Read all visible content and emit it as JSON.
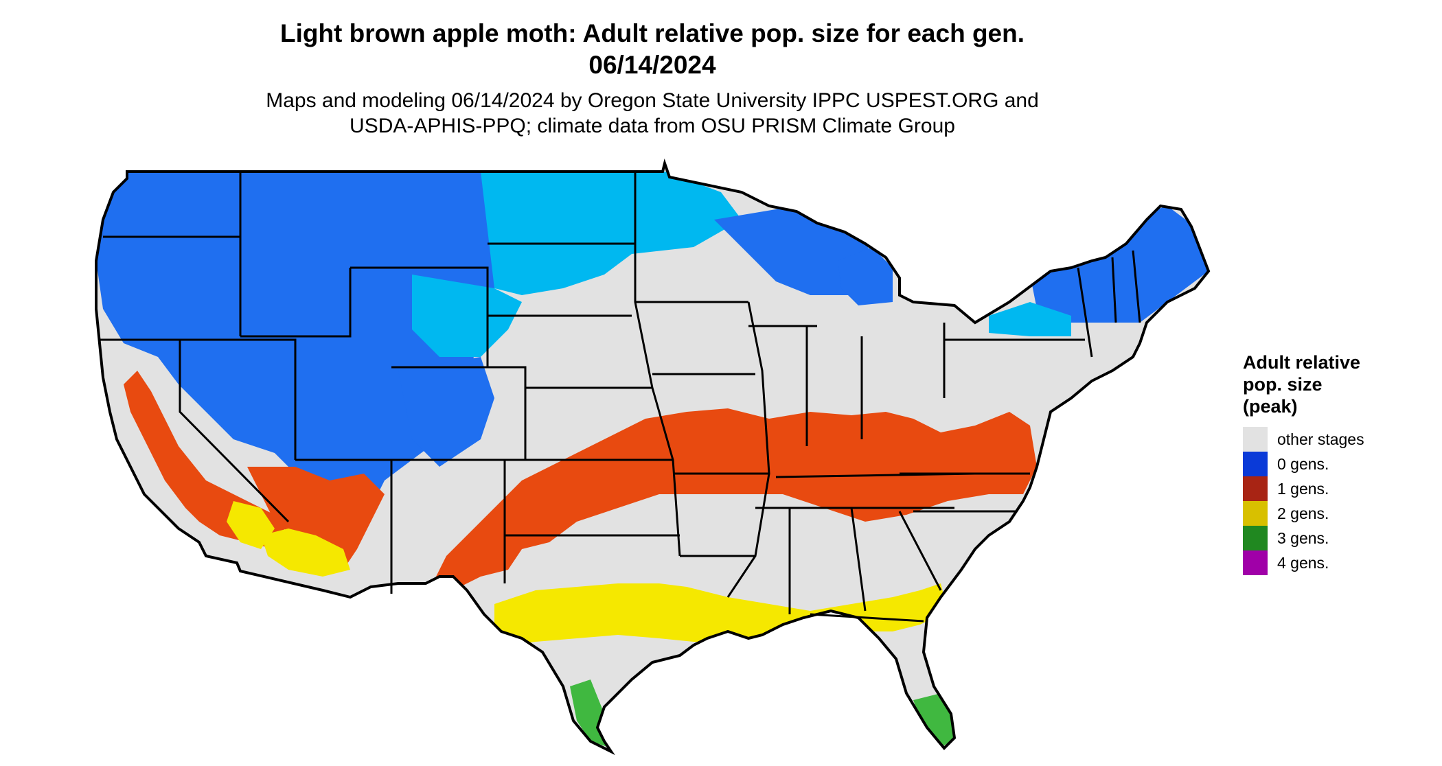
{
  "title": {
    "line1": "Light brown apple moth: Adult relative pop. size for each gen.",
    "line2": "06/14/2024"
  },
  "subtitle": {
    "line1": "Maps and modeling 06/14/2024 by Oregon State University IPPC USPEST.ORG and",
    "line2": "USDA-APHIS-PPQ; climate data from OSU PRISM Climate Group"
  },
  "map": {
    "region": "Conterminous United States",
    "colors": {
      "other": "#e2e2e2",
      "gen0_dark": "#0a4ee0",
      "gen0_light": "#00b8f0",
      "gen1": "#e84a10",
      "gen2": "#f5e800",
      "gen3": "#40b840",
      "border": "#000000"
    }
  },
  "legend": {
    "title_line1": "Adult relative",
    "title_line2": "pop. size",
    "title_line3": "(peak)",
    "items": [
      {
        "label": "other stages",
        "color": "#e2e2e2"
      },
      {
        "label": "0 gens.",
        "color": "#0a3ad8"
      },
      {
        "label": "1 gens.",
        "color": "#a82414"
      },
      {
        "label": "2 gens.",
        "color": "#d8c000"
      },
      {
        "label": "3 gens.",
        "color": "#208820"
      },
      {
        "label": "4 gens.",
        "color": "#a000a8"
      }
    ]
  }
}
